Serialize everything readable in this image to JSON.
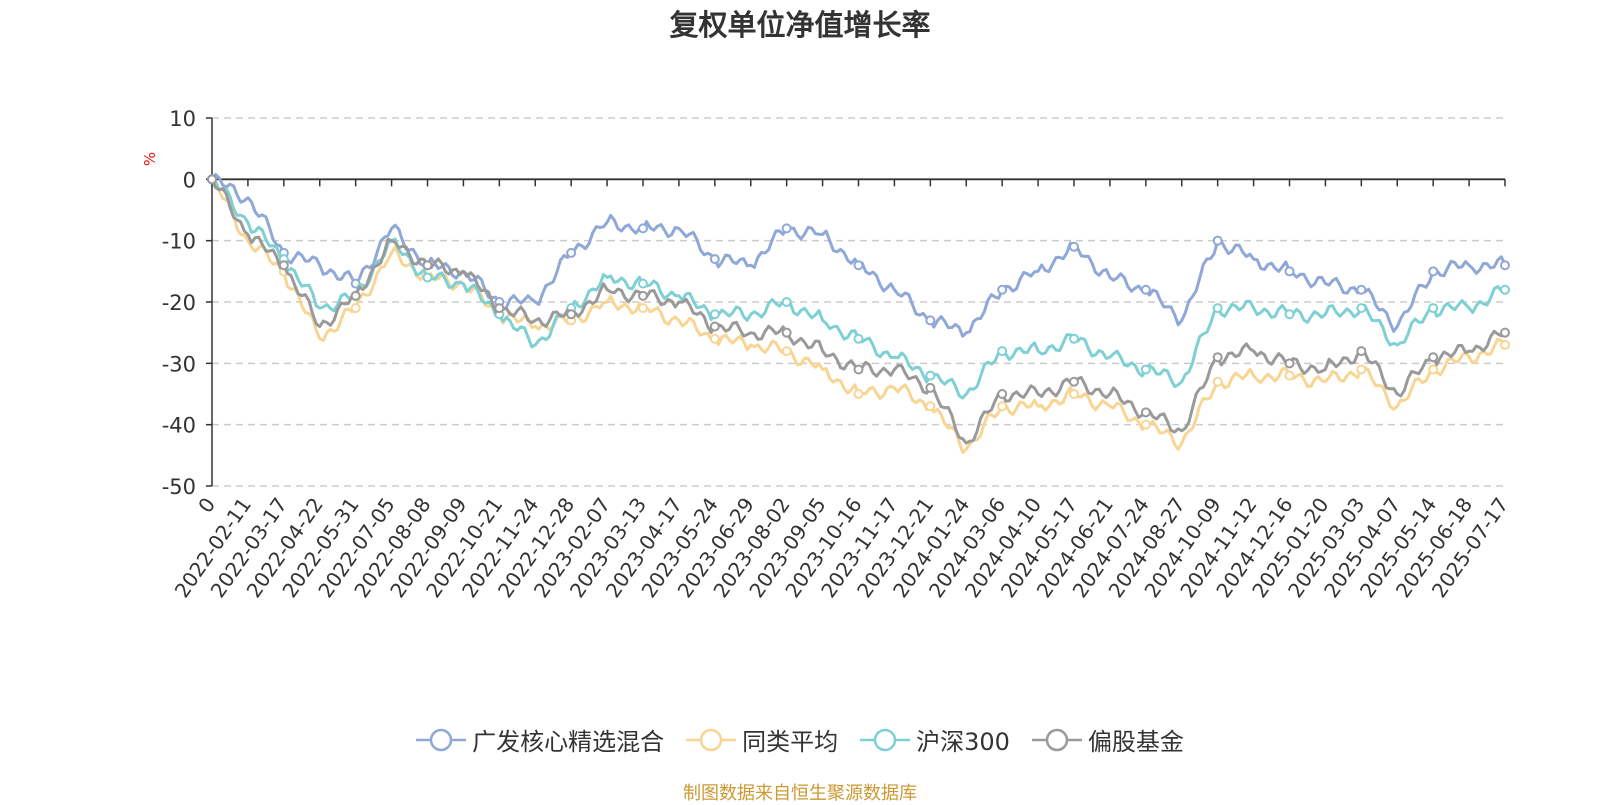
{
  "title": "复权单位净值增长率",
  "ylabel_unit": "%",
  "footer": "制图数据来自恒生聚源数据库",
  "chart_data": {
    "type": "line",
    "title": "复权单位净值增长率",
    "ylabel": "%",
    "ylim": [
      -50,
      10
    ],
    "yticks": [
      10,
      0,
      -10,
      -20,
      -30,
      -40,
      -50
    ],
    "grid": true,
    "legend_position": "bottom",
    "categories": [
      "0",
      "2022-02-11",
      "2022-03-17",
      "2022-04-22",
      "2022-05-31",
      "2022-07-05",
      "2022-08-08",
      "2022-09-09",
      "2022-10-21",
      "2022-11-24",
      "2022-12-28",
      "2023-02-07",
      "2023-03-13",
      "2023-04-17",
      "2023-05-24",
      "2023-06-29",
      "2023-08-02",
      "2023-09-05",
      "2023-10-16",
      "2023-11-17",
      "2023-12-21",
      "2024-01-24",
      "2024-03-06",
      "2024-04-10",
      "2024-05-17",
      "2024-06-21",
      "2024-07-24",
      "2024-08-27",
      "2024-10-09",
      "2024-11-12",
      "2024-12-16",
      "2025-01-20",
      "2025-03-03",
      "2025-04-07",
      "2025-05-14",
      "2025-06-18",
      "2025-07-17"
    ],
    "series": [
      {
        "name": "广发核心精选混合",
        "color": "#8fa8d8",
        "values": [
          0,
          -3,
          -12,
          -14,
          -17,
          -8,
          -14,
          -15,
          -20,
          -20,
          -12,
          -7,
          -8,
          -8,
          -13,
          -14,
          -8,
          -9,
          -14,
          -18,
          -23,
          -25,
          -18,
          -15,
          -11,
          -16,
          -18,
          -23,
          -10,
          -13,
          -15,
          -17,
          -18,
          -24,
          -15,
          -14,
          -14
        ]
      },
      {
        "name": "同类平均",
        "color": "#f9d593",
        "values": [
          0,
          -10,
          -15,
          -26,
          -21,
          -12,
          -16,
          -17,
          -22,
          -24,
          -23,
          -20,
          -21,
          -23,
          -26,
          -27,
          -28,
          -31,
          -35,
          -34,
          -37,
          -44,
          -37,
          -37,
          -35,
          -37,
          -40,
          -43,
          -33,
          -32,
          -32,
          -33,
          -31,
          -37,
          -31,
          -29,
          -27
        ]
      },
      {
        "name": "沪深300",
        "color": "#7fd0d4",
        "values": [
          0,
          -7,
          -13,
          -21,
          -19,
          -10,
          -16,
          -17,
          -22,
          -27,
          -21,
          -16,
          -17,
          -19,
          -22,
          -22,
          -20,
          -23,
          -26,
          -29,
          -32,
          -35,
          -28,
          -28,
          -26,
          -29,
          -31,
          -33,
          -21,
          -21,
          -22,
          -22,
          -21,
          -27,
          -21,
          -21,
          -18
        ]
      },
      {
        "name": "偏股基金",
        "color": "#9a9a9a",
        "values": [
          0,
          -9,
          -14,
          -24,
          -19,
          -10,
          -14,
          -15,
          -21,
          -23,
          -22,
          -18,
          -19,
          -20,
          -24,
          -25,
          -25,
          -28,
          -31,
          -31,
          -34,
          -43,
          -35,
          -35,
          -33,
          -35,
          -38,
          -41,
          -29,
          -28,
          -30,
          -31,
          -28,
          -35,
          -29,
          -28,
          -25
        ]
      }
    ]
  }
}
